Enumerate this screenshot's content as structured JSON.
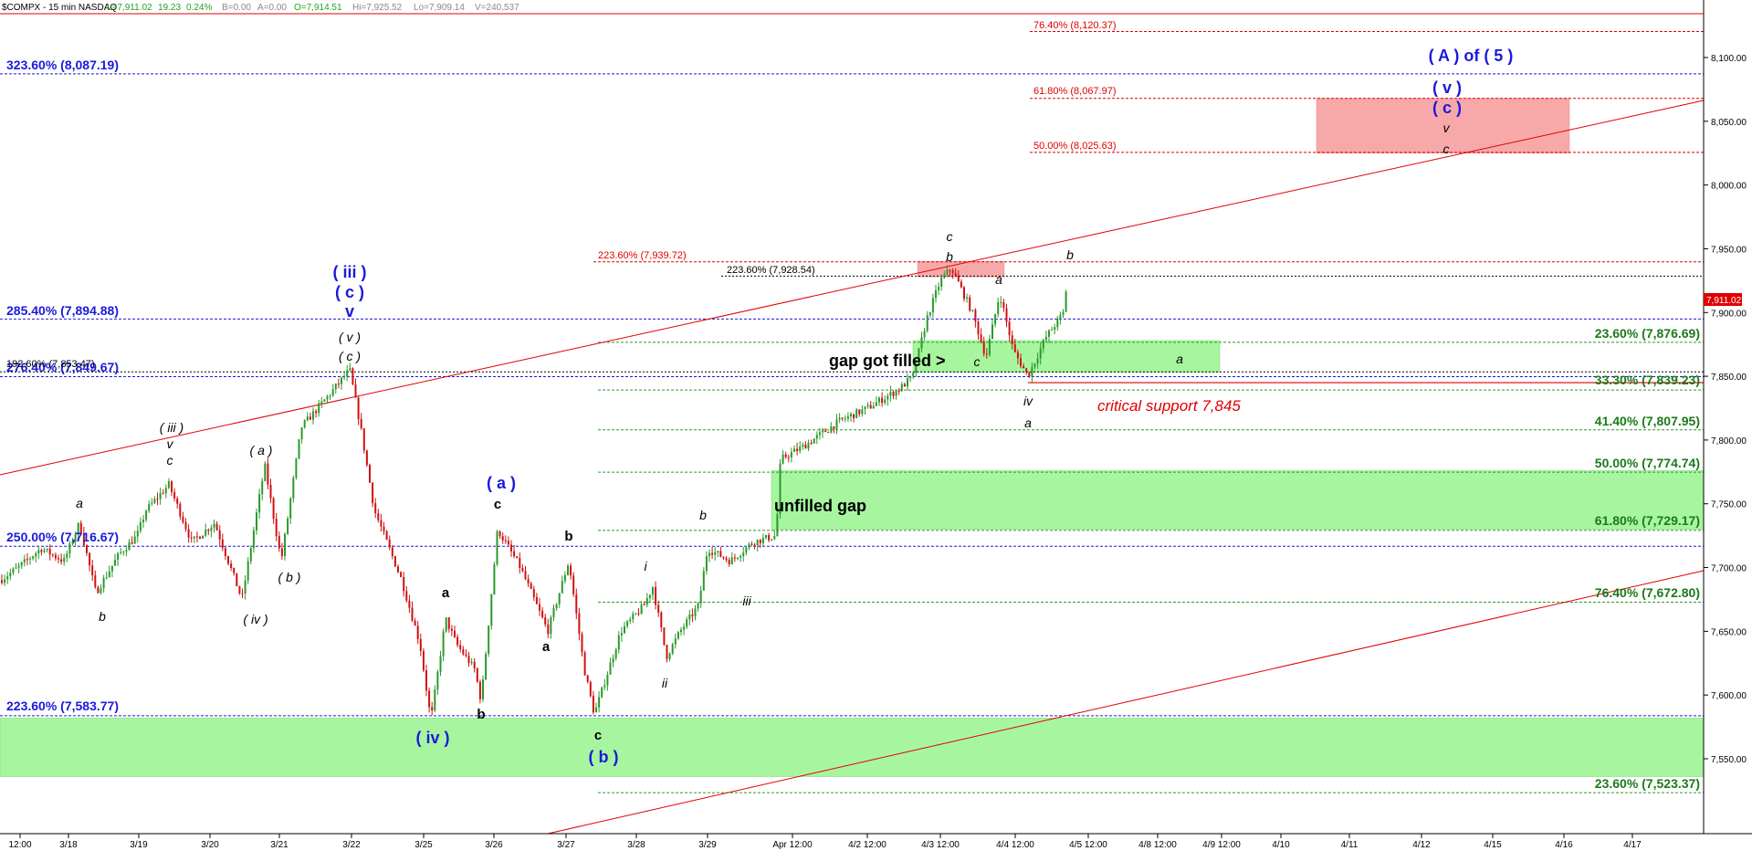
{
  "header": {
    "parts": [
      {
        "text": "$COMPX - 15 min  NASDAQ",
        "color": "#000000"
      },
      {
        "text": "L=7,911.02",
        "color": "#1fa51f"
      },
      {
        "text": "19.23",
        "color": "#1fa51f"
      },
      {
        "text": "0.24%",
        "color": "#1fa51f"
      },
      {
        "text": "B=0.00",
        "color": "#888888"
      },
      {
        "text": "A=0.00",
        "color": "#888888"
      },
      {
        "text": "O=7,914.51",
        "color": "#1fa51f"
      },
      {
        "text": "Hi=7,925.52",
        "color": "#888888"
      },
      {
        "text": "Lo=7,909.14",
        "color": "#888888"
      },
      {
        "text": "V=240,537",
        "color": "#888888"
      }
    ]
  },
  "colors": {
    "up": "#2a9a2a",
    "down": "#d01010",
    "blue": "#1a1adc",
    "green_text": "#1a7a1a",
    "red": "#e00000",
    "zone_green": "#a8f5a0",
    "zone_red": "#f7a9aa"
  },
  "chart_data": {
    "type": "candlestick",
    "title": "$COMPX - 15 min  NASDAQ",
    "y_ticks": [
      "8,100.00",
      "8,050.00",
      "8,000.00",
      "7,950.00",
      "7,900.00",
      "7,850.00",
      "7,800.00",
      "7,750.00",
      "7,700.00",
      "7,650.00",
      "7,600.00",
      "7,550.00"
    ],
    "x_ticks": [
      "12:00",
      "3/18",
      "3/19",
      "3/20",
      "3/21",
      "3/22",
      "3/25",
      "3/26",
      "3/27",
      "3/28",
      "3/29",
      "Apr 12:00",
      "4/2 12:00",
      "4/3 12:00",
      "4/4 12:00",
      "4/5 12:00",
      "4/8 12:00",
      "4/9 12:00",
      "4/10",
      "4/11",
      "4/12",
      "4/15",
      "4/16",
      "4/17"
    ],
    "last_price": "7,911.02",
    "grid": false,
    "levels_blue": [
      {
        "label": "323.60% (8,087.19)",
        "value": 8087.19
      },
      {
        "label": "285.40% (7,894.88)",
        "value": 7894.88
      },
      {
        "label": "276.40% (7,849.67)",
        "value": 7849.67
      },
      {
        "label": "250.00% (7,716.67)",
        "value": 7716.67
      },
      {
        "label": "223.60% (7,583.77)",
        "value": 7583.77
      }
    ],
    "levels_green": [
      {
        "label": "23.60% (7,876.69)",
        "value": 7876.69
      },
      {
        "label": "33.30% (7,839.23)",
        "value": 7839.23
      },
      {
        "label": "41.40% (7,807.95)",
        "value": 7807.95
      },
      {
        "label": "50.00% (7,774.74)",
        "value": 7774.74
      },
      {
        "label": "61.80% (7,729.17)",
        "value": 7729.17
      },
      {
        "label": "76.40% (7,672.80)",
        "value": 7672.8
      },
      {
        "label": "23.60% (7,523.37)",
        "value": 7523.37
      }
    ],
    "levels_red": [
      {
        "label": "76.40% (8,120.37)",
        "value": 8120.37
      },
      {
        "label": "61.80% (8,067.97)",
        "value": 8067.97
      },
      {
        "label": "50.00% (8,025.63)",
        "value": 8025.63
      },
      {
        "label": "223.60% (7,939.72)",
        "value": 7939.72
      }
    ],
    "levels_black": [
      {
        "label": "223.60% (7,928.54)",
        "value": 7928.54
      },
      {
        "label": "192.60% (7,853.47)",
        "value": 7853.47
      }
    ],
    "zones": [
      {
        "label": "unfilled gap",
        "color": "green",
        "y_top": 7776,
        "y_bottom": 7730
      },
      {
        "label": "",
        "color": "green",
        "y_top": 7582,
        "y_bottom": 7536
      },
      {
        "label": "",
        "color": "green",
        "y_top": 7878,
        "y_bottom": 7853
      },
      {
        "label": "",
        "color": "red",
        "y_top": 8068,
        "y_bottom": 8025
      },
      {
        "label": "",
        "color": "red",
        "y_top": 7940,
        "y_bottom": 7928
      }
    ],
    "waves": {
      "blue": [
        "( iii )",
        "( c )",
        "v",
        "( a )",
        "( iv )",
        "( b )",
        "( A ) of ( 5 )",
        "( v )",
        "( c )"
      ],
      "black": [
        "a",
        "b",
        "( iii )",
        "v",
        "c",
        "( a )",
        "( b )",
        "( iv )",
        "( v )",
        "( c )",
        "a",
        "b",
        "c",
        "b",
        "i",
        "ii",
        "c",
        "a",
        "b",
        "iii",
        "c",
        "b",
        "a",
        "c",
        "iv",
        "a",
        "b",
        "a",
        "v",
        "c"
      ]
    },
    "annotations": {
      "gap_filled": "gap got filled >",
      "unfilled_gap": "unfilled gap",
      "critical_support": "critical support 7,845"
    }
  }
}
